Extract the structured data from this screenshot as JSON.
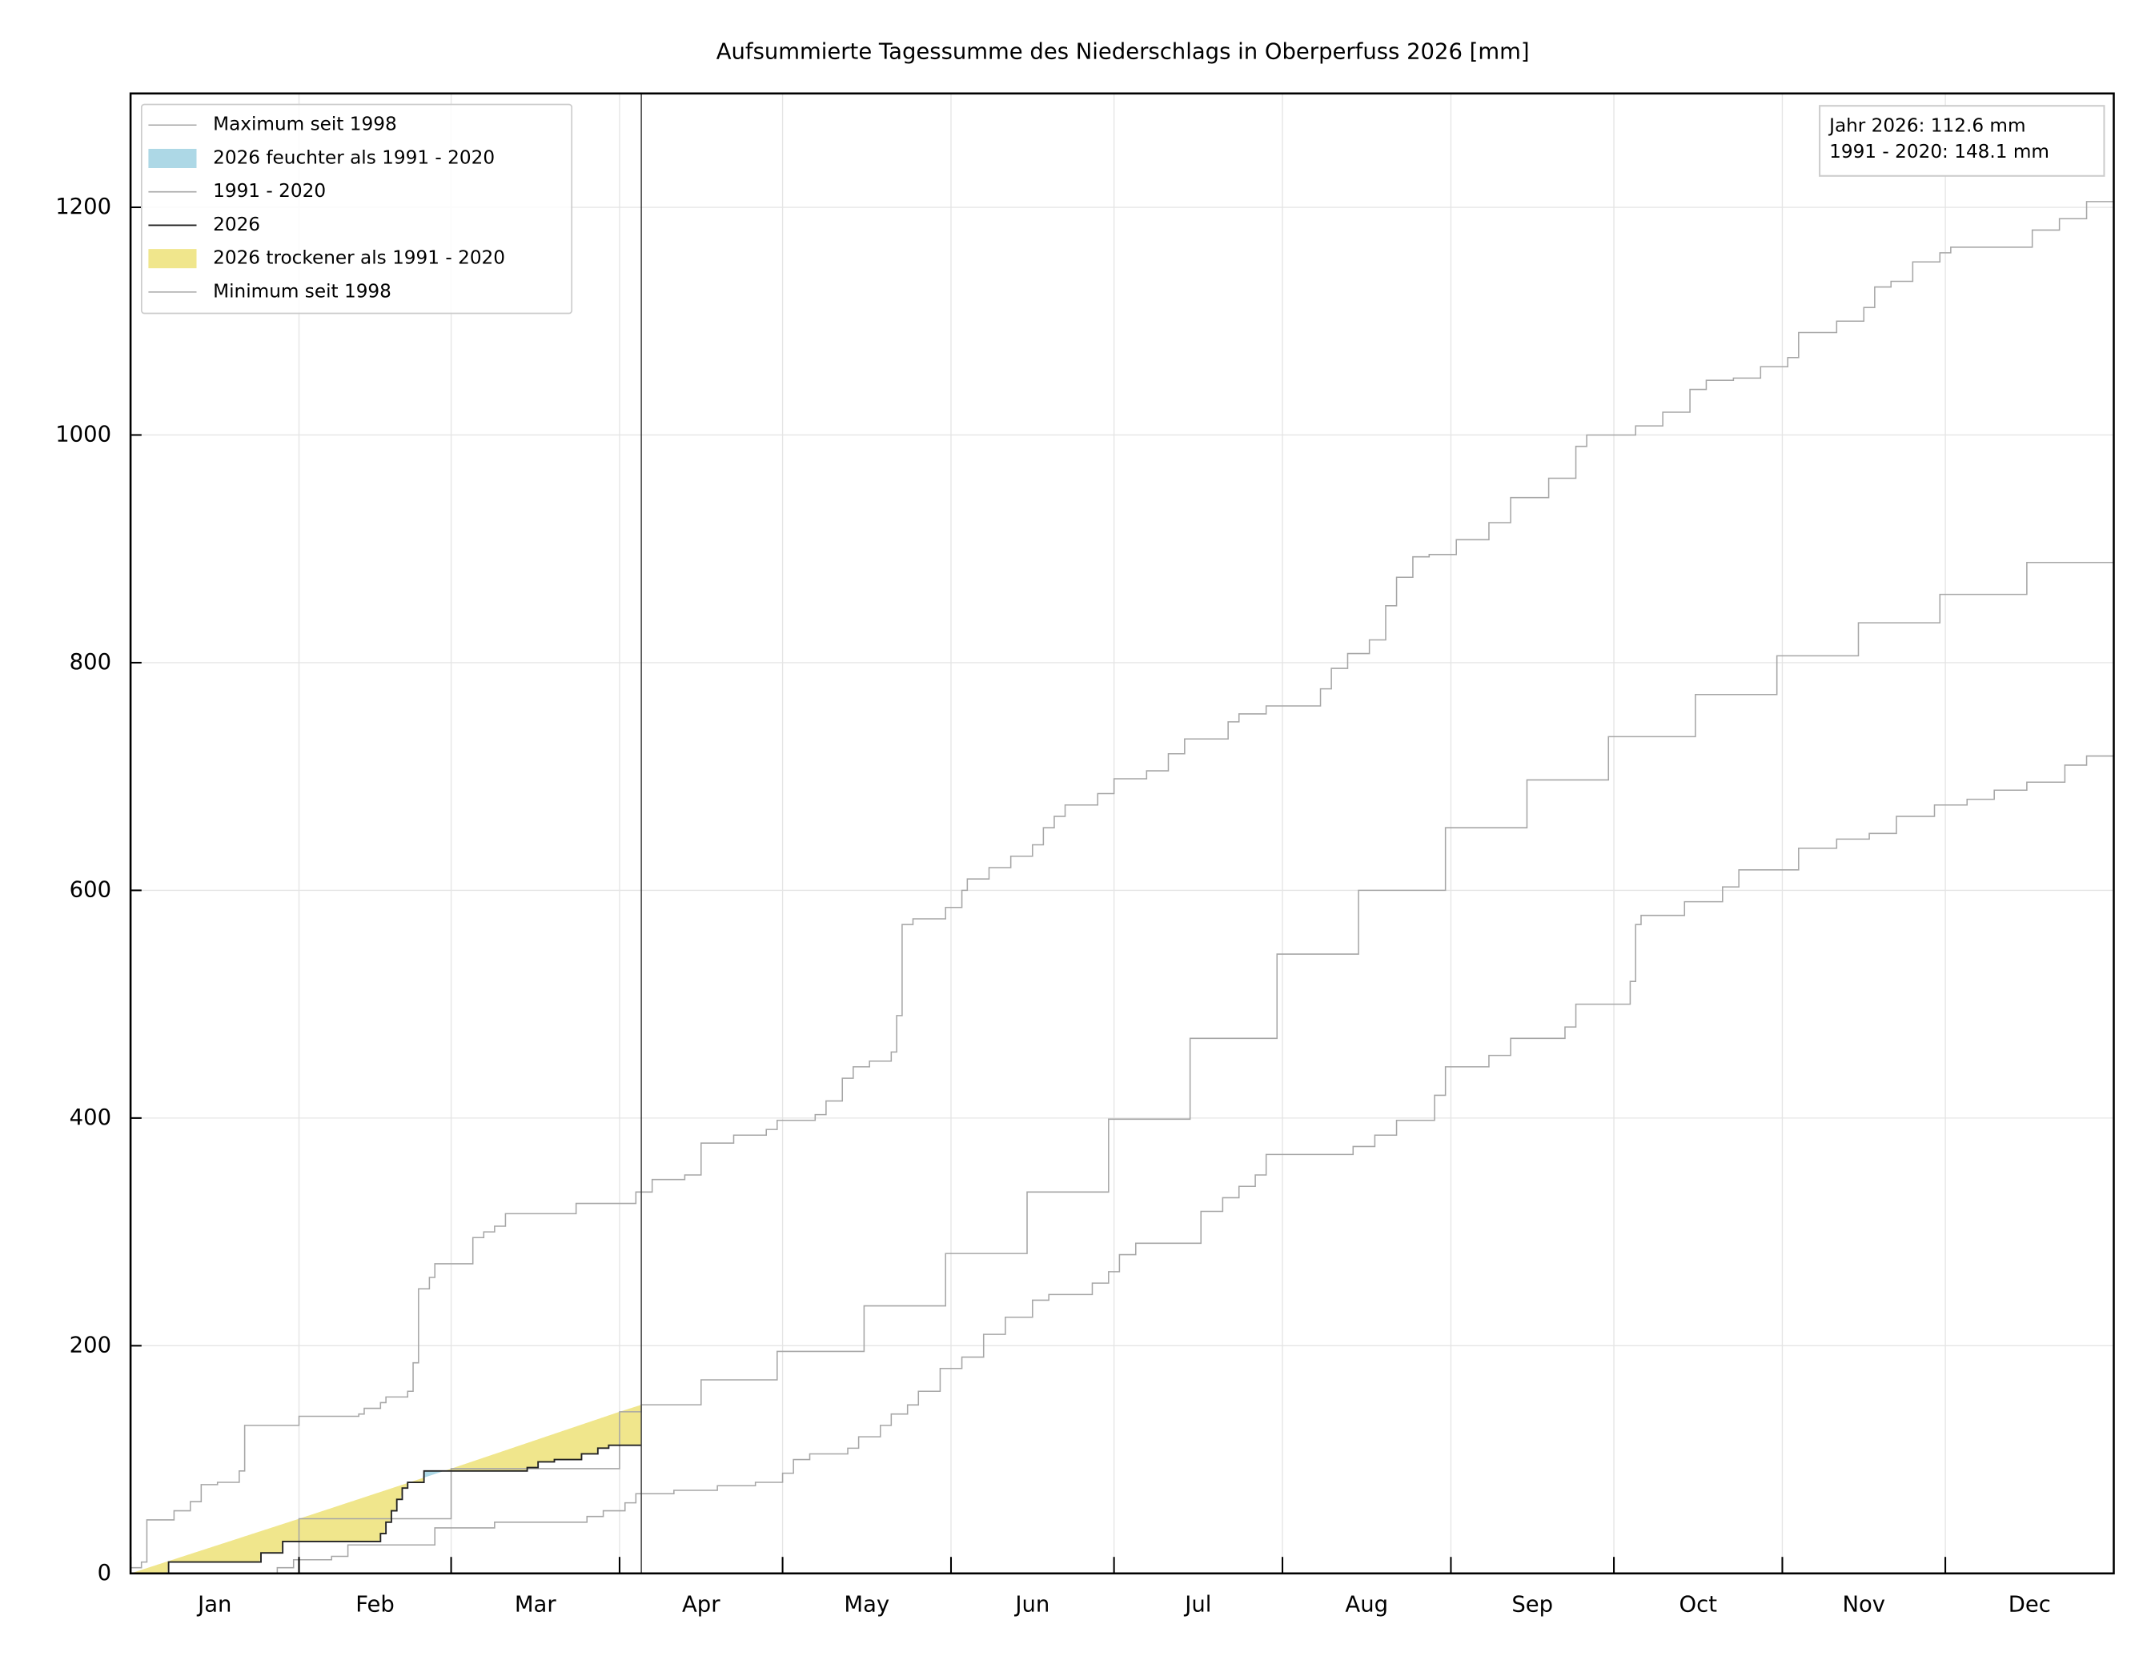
{
  "chart_data": {
    "type": "line",
    "title": "Aufsummierte Tagessumme des Niederschlags in Oberperfuss 2026 [mm]",
    "xlim": [
      0,
      365
    ],
    "ylim": [
      0,
      1300
    ],
    "yticks": [
      0,
      200,
      400,
      600,
      800,
      1000,
      1200
    ],
    "xticks": [
      {
        "value": 15.5,
        "label": "Jan"
      },
      {
        "value": 45,
        "label": "Feb"
      },
      {
        "value": 74.5,
        "label": "Mar"
      },
      {
        "value": 105,
        "label": "Apr"
      },
      {
        "value": 135.5,
        "label": "May"
      },
      {
        "value": 166,
        "label": "Jun"
      },
      {
        "value": 196.5,
        "label": "Jul"
      },
      {
        "value": 227.5,
        "label": "Aug"
      },
      {
        "value": 258,
        "label": "Sep"
      },
      {
        "value": 288.5,
        "label": "Oct"
      },
      {
        "value": 319,
        "label": "Nov"
      },
      {
        "value": 349.5,
        "label": "Dec"
      }
    ],
    "x_tick_marks": [
      0,
      31,
      59,
      90,
      120,
      151,
      181,
      212,
      243,
      273,
      304,
      334
    ],
    "grid": true,
    "step": true,
    "legend_loc": "upper left",
    "series": [
      {
        "name": "Maximum seit 1998",
        "color": "#a6a6a6",
        "x": [
          0,
          2,
          3,
          8,
          11,
          13,
          16,
          20,
          21,
          31,
          42,
          43,
          46,
          47,
          51,
          52,
          53,
          55,
          56,
          63,
          65,
          67,
          69,
          82,
          93,
          96,
          102,
          105,
          111,
          117,
          119,
          126,
          128,
          131,
          133,
          136,
          140,
          141,
          142,
          144,
          150,
          153,
          154,
          158,
          162,
          166,
          168,
          170,
          172,
          178,
          181,
          187,
          191,
          194,
          202,
          204,
          209,
          219,
          221,
          224,
          228,
          231,
          233,
          236,
          239,
          244,
          250,
          254,
          261,
          266,
          268,
          277,
          282,
          287,
          290,
          295,
          300,
          305,
          307,
          314,
          319,
          321,
          324,
          328,
          333,
          335,
          350,
          355,
          360,
          365
        ],
        "values": [
          5,
          10,
          47,
          55,
          63,
          78,
          80,
          90,
          130,
          138,
          140,
          145,
          150,
          155,
          160,
          185,
          250,
          260,
          272,
          295,
          300,
          305,
          316,
          325,
          335,
          346,
          350,
          378,
          385,
          390,
          398,
          403,
          415,
          435,
          445,
          450,
          458,
          490,
          570,
          575,
          585,
          600,
          610,
          620,
          630,
          640,
          655,
          665,
          675,
          685,
          698,
          705,
          720,
          733,
          748,
          755,
          762,
          777,
          795,
          808,
          820,
          850,
          875,
          893,
          895,
          908,
          923,
          945,
          962,
          990,
          1000,
          1008,
          1020,
          1040,
          1048,
          1050,
          1060,
          1068,
          1090,
          1100,
          1112,
          1130,
          1135,
          1152,
          1160,
          1165,
          1180,
          1190,
          1205,
          1210
        ]
      },
      {
        "name": "1991 - 2020",
        "color": "#a6a6a6",
        "x": [
          0,
          31,
          59,
          90,
          94,
          105,
          119,
          135,
          150,
          165,
          180,
          195,
          211,
          226,
          242,
          257,
          272,
          288,
          303,
          318,
          333,
          349,
          365
        ],
        "values": [
          0,
          48,
          92,
          142,
          148.1,
          170,
          195,
          235,
          281,
          335,
          399,
          470,
          544,
          600,
          655,
          697,
          735,
          772,
          806,
          835,
          860,
          888,
          915
        ]
      },
      {
        "name": "2026",
        "color": "#222222",
        "x": [
          0,
          7,
          24,
          28,
          46,
          47,
          48,
          49,
          50,
          51,
          54,
          73,
          75,
          78,
          83,
          86,
          88,
          94
        ],
        "values": [
          0,
          10,
          18,
          28,
          35,
          45,
          55,
          65,
          75,
          80,
          90,
          93,
          98,
          100,
          105,
          110,
          112.6,
          112.6
        ]
      },
      {
        "name": "Minimum seit 1998",
        "color": "#a6a6a6",
        "x": [
          0,
          27,
          30,
          37,
          40,
          56,
          67,
          84,
          87,
          91,
          93,
          100,
          108,
          115,
          120,
          122,
          125,
          132,
          134,
          138,
          140,
          143,
          145,
          149,
          153,
          157,
          161,
          166,
          169,
          177,
          180,
          182,
          185,
          197,
          201,
          204,
          207,
          209,
          225,
          229,
          233,
          240,
          242,
          250,
          254,
          264,
          266,
          276,
          277,
          278,
          286,
          293,
          296,
          307,
          314,
          320,
          325,
          332,
          338,
          343,
          349,
          356,
          360,
          365
        ],
        "values": [
          0,
          5,
          12,
          15,
          25,
          40,
          45,
          50,
          55,
          62,
          70,
          73,
          77,
          80,
          88,
          100,
          105,
          110,
          120,
          130,
          140,
          148,
          160,
          180,
          190,
          210,
          225,
          240,
          245,
          255,
          265,
          280,
          290,
          318,
          330,
          340,
          350,
          368,
          375,
          385,
          398,
          420,
          445,
          455,
          470,
          480,
          500,
          520,
          570,
          578,
          590,
          603,
          618,
          637,
          645,
          650,
          665,
          675,
          680,
          688,
          695,
          710,
          718,
          718
        ]
      }
    ],
    "fills": [
      {
        "name": "2026 feuchter als 1991 - 2020",
        "color": "#add8e6"
      },
      {
        "name": "2026 trockener als 1991 - 2020",
        "color": "#f0e68c"
      }
    ],
    "annotations": [
      "Jahr 2026: 112.6 mm",
      "1991 - 2020: 148.1 mm"
    ]
  }
}
